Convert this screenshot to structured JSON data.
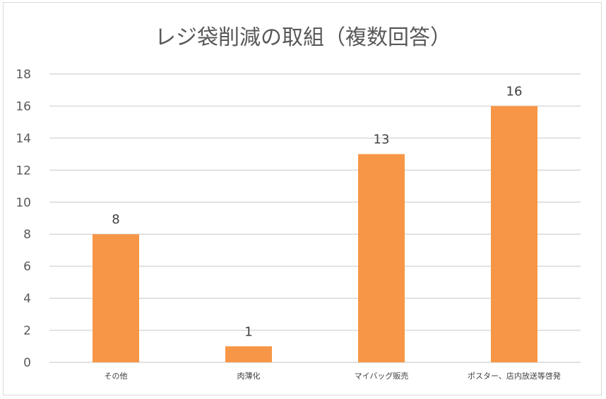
{
  "chart_data": {
    "type": "bar",
    "title": "レジ袋削減の取組（複数回答）",
    "categories": [
      "その他",
      "肉薄化",
      "マイバッグ販売",
      "ポスター、店内放送等啓発"
    ],
    "values": [
      8,
      1,
      13,
      16
    ],
    "ylim": [
      0,
      18
    ],
    "yticks": [
      0,
      2,
      4,
      6,
      8,
      10,
      12,
      14,
      16,
      18
    ],
    "xlabel": "",
    "ylabel": "",
    "grid": true,
    "legend": "none",
    "bar_color": "#f79646",
    "grid_color": "#d9d9d9"
  }
}
